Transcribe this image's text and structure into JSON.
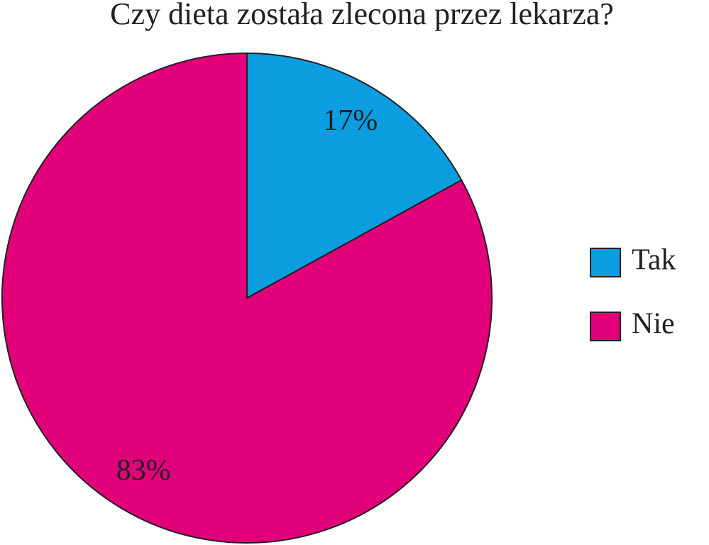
{
  "chart_data": {
    "type": "pie",
    "title": "Czy dieta została zlecona przez lekarza?",
    "categories": [
      "Tak",
      "Nie"
    ],
    "values": [
      17,
      83
    ],
    "value_labels": [
      "17%",
      "83%"
    ],
    "colors": [
      "#0a9ee0",
      "#e2007a"
    ],
    "legend": "right"
  }
}
